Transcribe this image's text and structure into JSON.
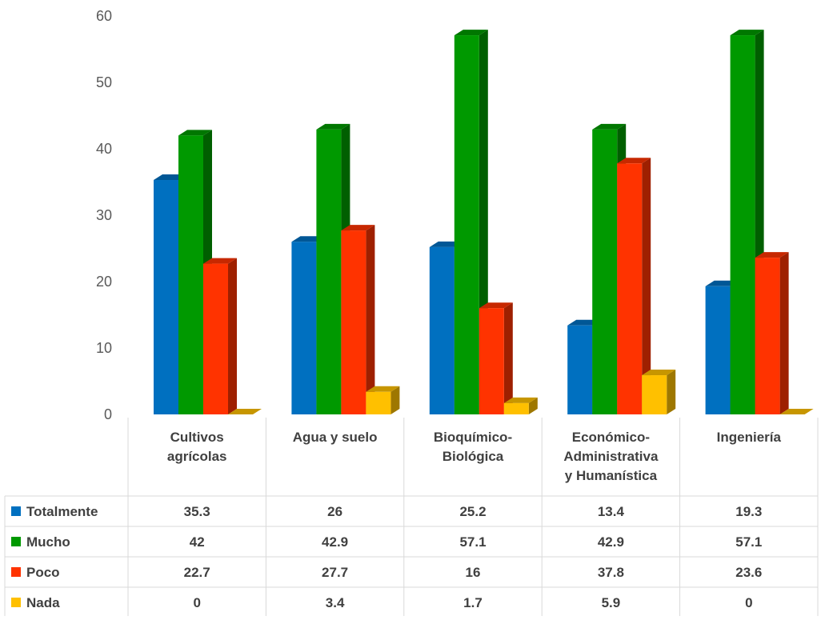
{
  "chart_data": {
    "type": "bar",
    "categories": [
      [
        "Cultivos",
        "agrícolas"
      ],
      [
        "Agua y suelo"
      ],
      [
        "Bioquímico-",
        "Biológica"
      ],
      [
        "Económico-",
        "Administrativa",
        "y Humanística"
      ],
      [
        "Ingeniería"
      ]
    ],
    "series": [
      {
        "name": "Totalmente",
        "color": "#0070c0",
        "values": [
          35.3,
          26,
          25.2,
          13.4,
          19.3
        ]
      },
      {
        "name": "Mucho",
        "color": "#009900",
        "values": [
          42,
          42.9,
          57.1,
          42.9,
          57.1
        ]
      },
      {
        "name": "Poco",
        "color": "#ff3300",
        "values": [
          22.7,
          27.7,
          16,
          37.8,
          23.6
        ]
      },
      {
        "name": "Nada",
        "color": "#ffc000",
        "values": [
          0,
          3.4,
          1.7,
          5.9,
          0
        ]
      }
    ],
    "ylim": [
      0,
      60
    ],
    "yticks": [
      0,
      10,
      20,
      30,
      40,
      50,
      60
    ],
    "grid": false,
    "legend": "data-table",
    "style": "3d-column"
  }
}
